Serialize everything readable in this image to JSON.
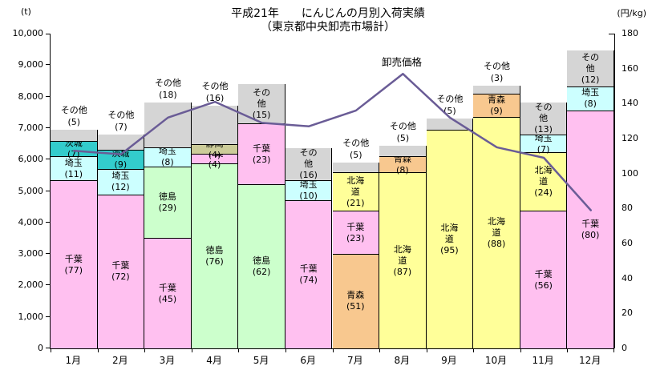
{
  "chart_data": {
    "type": "bar",
    "subtype": "stacked-bar-with-line",
    "title_line1": "平成21年　　にんじんの月別入荷実績",
    "title_line2": "（東京都中央卸売市場計）",
    "left_axis": {
      "unit": "(t)",
      "min": 0,
      "max": 10000,
      "step": 1000
    },
    "right_axis": {
      "unit": "(円/kg)",
      "min": 0,
      "max": 180,
      "step": 20
    },
    "grid": "off",
    "legend": "none",
    "categories": [
      "1月",
      "2月",
      "3月",
      "4月",
      "5月",
      "6月",
      "7月",
      "8月",
      "9月",
      "10月",
      "11月",
      "12月"
    ],
    "region_colors": {
      "千葉": "#ffc0f0",
      "埼玉": "#ccffff",
      "茨城": "#33cccc",
      "徳島": "#ccffcc",
      "静岡": "#cccc99",
      "北海道": "#ffff99",
      "青森": "#f8c88f",
      "その他": "#d5d5d5"
    },
    "region_keys": {
      "千葉": "chiba",
      "埼玉": "saitama",
      "茨城": "ibaraki",
      "徳島": "tokushima",
      "静岡": "shizuoka",
      "北海道": "hokkaido",
      "青森": "aomori",
      "その他": "others"
    },
    "bars": [
      {
        "month": "1月",
        "total": 6940,
        "segments": [
          {
            "name": "千葉",
            "pct": 77,
            "label": "inside2"
          },
          {
            "name": "埼玉",
            "pct": 11,
            "label": "inside1"
          },
          {
            "name": "茨城",
            "pct": 7,
            "label": "inside1"
          },
          {
            "name": "その他",
            "pct": 5,
            "label": "above"
          }
        ]
      },
      {
        "month": "2月",
        "total": 6790,
        "segments": [
          {
            "name": "千葉",
            "pct": 72,
            "label": "inside2"
          },
          {
            "name": "埼玉",
            "pct": 12,
            "label": "inside1"
          },
          {
            "name": "茨城",
            "pct": 9,
            "label": "inside1"
          },
          {
            "name": "その他",
            "pct": 7,
            "label": "above"
          }
        ]
      },
      {
        "month": "3月",
        "total": 7800,
        "segments": [
          {
            "name": "千葉",
            "pct": 45,
            "label": "inside2"
          },
          {
            "name": "徳島",
            "pct": 29,
            "label": "inside2"
          },
          {
            "name": "埼玉",
            "pct": 8,
            "label": "inside1"
          },
          {
            "name": "その他",
            "pct": 18,
            "label": "above"
          }
        ]
      },
      {
        "month": "4月",
        "total": 7720,
        "segments": [
          {
            "name": "徳島",
            "pct": 76,
            "label": "inside2"
          },
          {
            "name": "千葉",
            "pct": 4,
            "label": "inside1"
          },
          {
            "name": "静岡",
            "pct": 4,
            "label": "inside1"
          },
          {
            "name": "その他",
            "pct": 16,
            "label": "above"
          }
        ]
      },
      {
        "month": "5月",
        "total": 8400,
        "segments": [
          {
            "name": "徳島",
            "pct": 62,
            "label": "inside2"
          },
          {
            "name": "千葉",
            "pct": 23,
            "label": "inside2"
          },
          {
            "name": "その他",
            "pct": 15,
            "label": "inside2"
          }
        ]
      },
      {
        "month": "6月",
        "total": 6360,
        "segments": [
          {
            "name": "千葉",
            "pct": 74,
            "label": "inside2"
          },
          {
            "name": "埼玉",
            "pct": 10,
            "label": "inside1"
          },
          {
            "name": "その他",
            "pct": 16,
            "label": "inside2"
          }
        ]
      },
      {
        "month": "7月",
        "total": 5900,
        "segments": [
          {
            "name": "青森",
            "pct": 51,
            "label": "inside2"
          },
          {
            "name": "千葉",
            "pct": 23,
            "label": "inside2"
          },
          {
            "name": "北海道",
            "pct": 21,
            "label": "inside2"
          },
          {
            "name": "その他",
            "pct": 5,
            "label": "above"
          }
        ]
      },
      {
        "month": "8月",
        "total": 6430,
        "segments": [
          {
            "name": "北海道",
            "pct": 87,
            "label": "inside2"
          },
          {
            "name": "青森",
            "pct": 8,
            "label": "inside1"
          },
          {
            "name": "その他",
            "pct": 5,
            "label": "above"
          }
        ]
      },
      {
        "month": "9月",
        "total": 7300,
        "segments": [
          {
            "name": "北海道",
            "pct": 95,
            "label": "inside2"
          },
          {
            "name": "その他",
            "pct": 5,
            "label": "above"
          }
        ]
      },
      {
        "month": "10月",
        "total": 8350,
        "segments": [
          {
            "name": "北海道",
            "pct": 88,
            "label": "inside2"
          },
          {
            "name": "青森",
            "pct": 9,
            "label": "inside1"
          },
          {
            "name": "その他",
            "pct": 3,
            "label": "above"
          }
        ]
      },
      {
        "month": "11月",
        "total": 7800,
        "segments": [
          {
            "name": "千葉",
            "pct": 56,
            "label": "inside2"
          },
          {
            "name": "北海道",
            "pct": 24,
            "label": "inside2"
          },
          {
            "name": "埼玉",
            "pct": 7,
            "label": "inside1"
          },
          {
            "name": "その他",
            "pct": 13,
            "label": "inside2"
          }
        ]
      },
      {
        "month": "12月",
        "total": 9460,
        "segments": [
          {
            "name": "千葉",
            "pct": 80,
            "label": "inside2"
          },
          {
            "name": "埼玉",
            "pct": 8,
            "label": "inside1"
          },
          {
            "name": "その他",
            "pct": 12,
            "label": "inside2"
          }
        ]
      }
    ],
    "price_line": {
      "label": "卸売価格",
      "color": "#6a5c96",
      "values": [
        113,
        111,
        132,
        141,
        129,
        127,
        136,
        157,
        132,
        115,
        109,
        79
      ]
    }
  }
}
